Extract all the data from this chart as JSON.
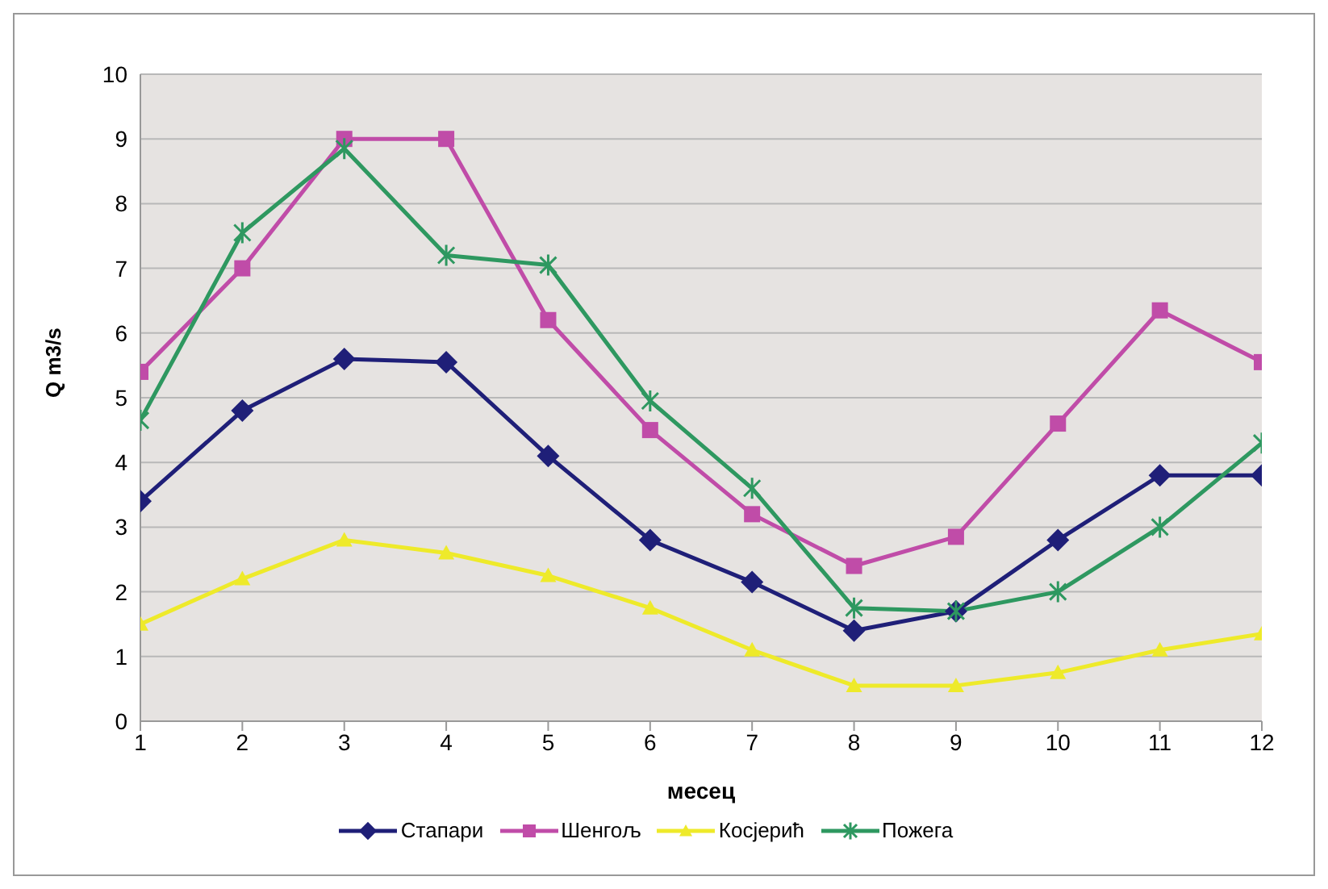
{
  "chart_data": {
    "type": "line",
    "xlabel": "месец",
    "ylabel": "Q  m3/s",
    "x": [
      1,
      2,
      3,
      4,
      5,
      6,
      7,
      8,
      9,
      10,
      11,
      12
    ],
    "xlim": [
      1,
      12
    ],
    "xticks": [
      1,
      2,
      3,
      4,
      5,
      6,
      7,
      8,
      9,
      10,
      11,
      12
    ],
    "ylim": [
      0,
      10
    ],
    "yticks": [
      0,
      1,
      2,
      3,
      4,
      5,
      6,
      7,
      8,
      9,
      10
    ],
    "grid": "y",
    "legend": "bottom",
    "series": [
      {
        "name": "Стапари",
        "color": "#1f1f78",
        "marker": "diamond",
        "values": [
          3.4,
          4.8,
          5.6,
          5.55,
          4.1,
          2.8,
          2.15,
          1.4,
          1.7,
          2.8,
          3.8,
          3.8
        ]
      },
      {
        "name": "Шенгољ",
        "color": "#c04ca8",
        "marker": "square",
        "values": [
          5.4,
          7.0,
          9.0,
          9.0,
          6.2,
          4.5,
          3.2,
          2.4,
          2.85,
          4.6,
          6.35,
          5.55
        ]
      },
      {
        "name": "Косјерић",
        "color": "#eeea2a",
        "marker": "triangle",
        "values": [
          1.5,
          2.2,
          2.8,
          2.6,
          2.25,
          1.75,
          1.1,
          0.55,
          0.55,
          0.75,
          1.1,
          1.35
        ]
      },
      {
        "name": "Пожега",
        "color": "#2e9860",
        "marker": "cross",
        "values": [
          4.65,
          7.55,
          8.85,
          7.2,
          7.05,
          4.95,
          3.6,
          1.75,
          1.7,
          2.0,
          3.0,
          4.3
        ]
      }
    ]
  }
}
